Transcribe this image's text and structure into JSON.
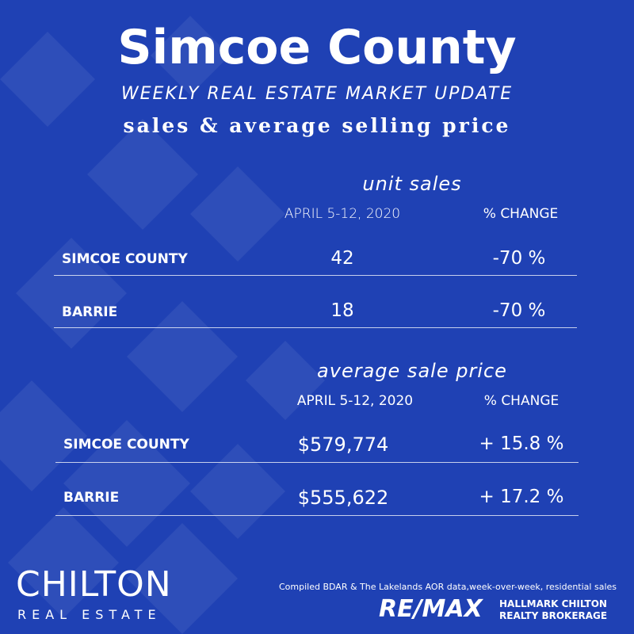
{
  "header": {
    "title": "Simcoe County",
    "subtitle": "WEEKLY REAL ESTATE MARKET UPDATE",
    "tagline": "sales & average selling price"
  },
  "sections": [
    {
      "title": "unit sales",
      "columns": [
        "APRIL 5-12, 2020",
        "% CHANGE"
      ],
      "rows": [
        [
          "SIMCOE COUNTY",
          "42",
          "-70 %"
        ],
        [
          "BARRIE",
          "18",
          "-70 %"
        ]
      ]
    },
    {
      "title": "average sale price",
      "columns": [
        "APRIL 5-12, 2020",
        "% CHANGE"
      ],
      "rows": [
        [
          "SIMCOE COUNTY",
          "$579,774",
          "+ 15.8 %"
        ],
        [
          "BARRIE",
          "$555,622",
          "+ 17.2 %"
        ]
      ]
    }
  ],
  "footer": {
    "brand": "CHILTON",
    "brand_sub": "REAL ESTATE",
    "note": "Compiled BDAR & The Lakelands AOR data,week-over-week, residential sales",
    "remax": "RE/MAX",
    "remax_sub": [
      "HALLMARK CHILTON",
      "REALTY BROKERAGE"
    ]
  }
}
